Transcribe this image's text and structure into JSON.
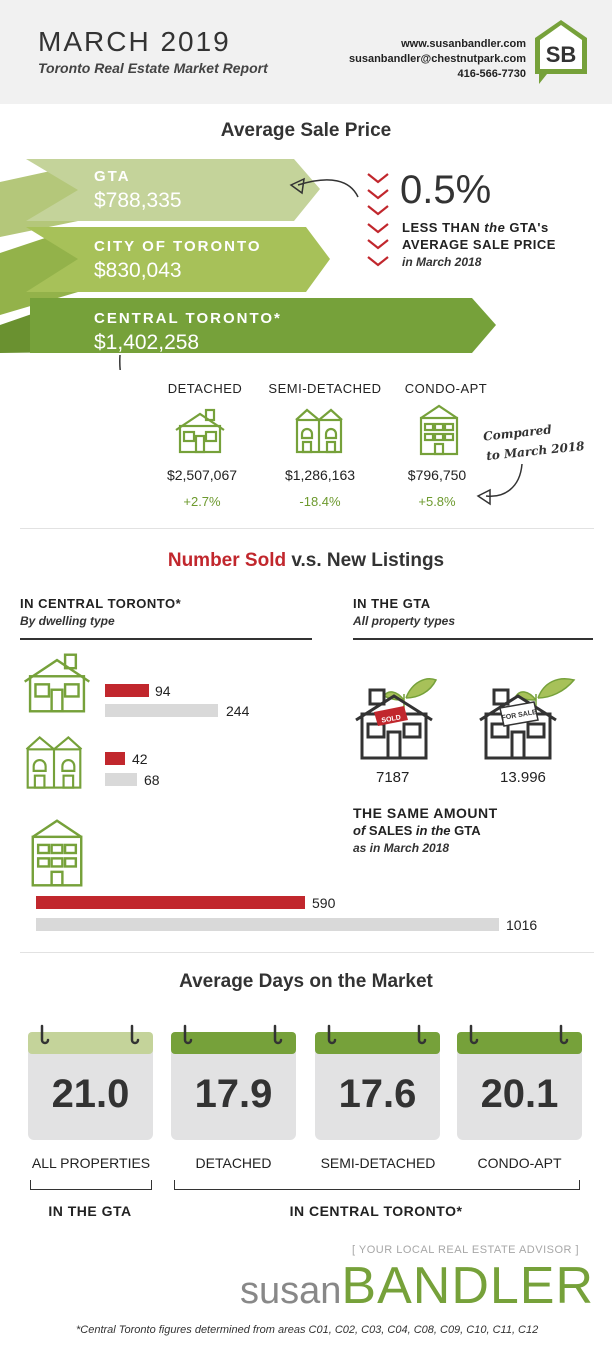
{
  "header": {
    "title": "MARCH 2019",
    "subtitle": "Toronto Real Estate Market Report",
    "website": "www.susanbandler.com",
    "email": "susanbandler@chestnutpark.com",
    "phone": "416-566-7730",
    "logo_text": "SB"
  },
  "avg_price": {
    "title": "Average Sale Price",
    "gta_label": "GTA",
    "gta_value": "$788,335",
    "city_label": "CITY OF TORONTO",
    "city_value": "$830,043",
    "central_label": "CENTRAL TORONTO*",
    "central_value": "$1,402,258",
    "stat_pct": "0.5%",
    "stat_line1": "LESS THAN",
    "stat_line1b": "the",
    "stat_line1c": "GTA's",
    "stat_line2": "AVERAGE SALE PRICE",
    "stat_line3": "in March 2018",
    "compared_1": "Compared",
    "compared_2": "to March 2018",
    "types": [
      {
        "label": "DETACHED",
        "price": "$2,507,067",
        "change": "+2.7%"
      },
      {
        "label": "SEMI-DETACHED",
        "price": "$1,286,163",
        "change": "-18.4%"
      },
      {
        "label": "CONDO-APT",
        "price": "$796,750",
        "change": "+5.8%"
      }
    ]
  },
  "sold": {
    "title_red": "Number Sold",
    "title_rest": "v.s. New Listings",
    "central_head": "IN CENTRAL TORONTO*",
    "central_sub": "By dwelling type",
    "gta_head": "IN THE GTA",
    "gta_sub": "All property types",
    "detached": {
      "sold": 94,
      "listings": 244
    },
    "semi": {
      "sold": 42,
      "listings": 68
    },
    "condo": {
      "sold": 590,
      "listings": 1016
    },
    "gta_sold": "7187",
    "gta_listings": "13.996",
    "sold_sign": "SOLD",
    "forsale_sign": "FOR SALE",
    "same_1": "THE SAME AMOUNT",
    "same_2a": "of",
    "same_2b": "SALES",
    "same_2c": "in the",
    "same_2d": "GTA",
    "same_3": "as in March 2018"
  },
  "days": {
    "title": "Average Days on the Market",
    "items": [
      {
        "value": "21.0",
        "label": "ALL PROPERTIES"
      },
      {
        "value": "17.9",
        "label": "DETACHED"
      },
      {
        "value": "17.6",
        "label": "SEMI-DETACHED"
      },
      {
        "value": "20.1",
        "label": "CONDO-APT"
      }
    ],
    "gta_label": "IN THE GTA",
    "central_label": "IN CENTRAL TORONTO*"
  },
  "footer": {
    "tagline": "[ YOUR LOCAL REAL ESTATE ADVISOR ]",
    "brand_light": "susan",
    "brand_bold": "BANDLER",
    "note": "*Central Toronto figures determined from areas C01, C02, C03, C04, C08, C09, C10, C11, C12"
  },
  "colors": {
    "green_light": "#c4d39a",
    "green_mid": "#a7c159",
    "green_dark": "#76a13a",
    "red": "#c1272d",
    "grey_bar": "#d9d9d9"
  }
}
